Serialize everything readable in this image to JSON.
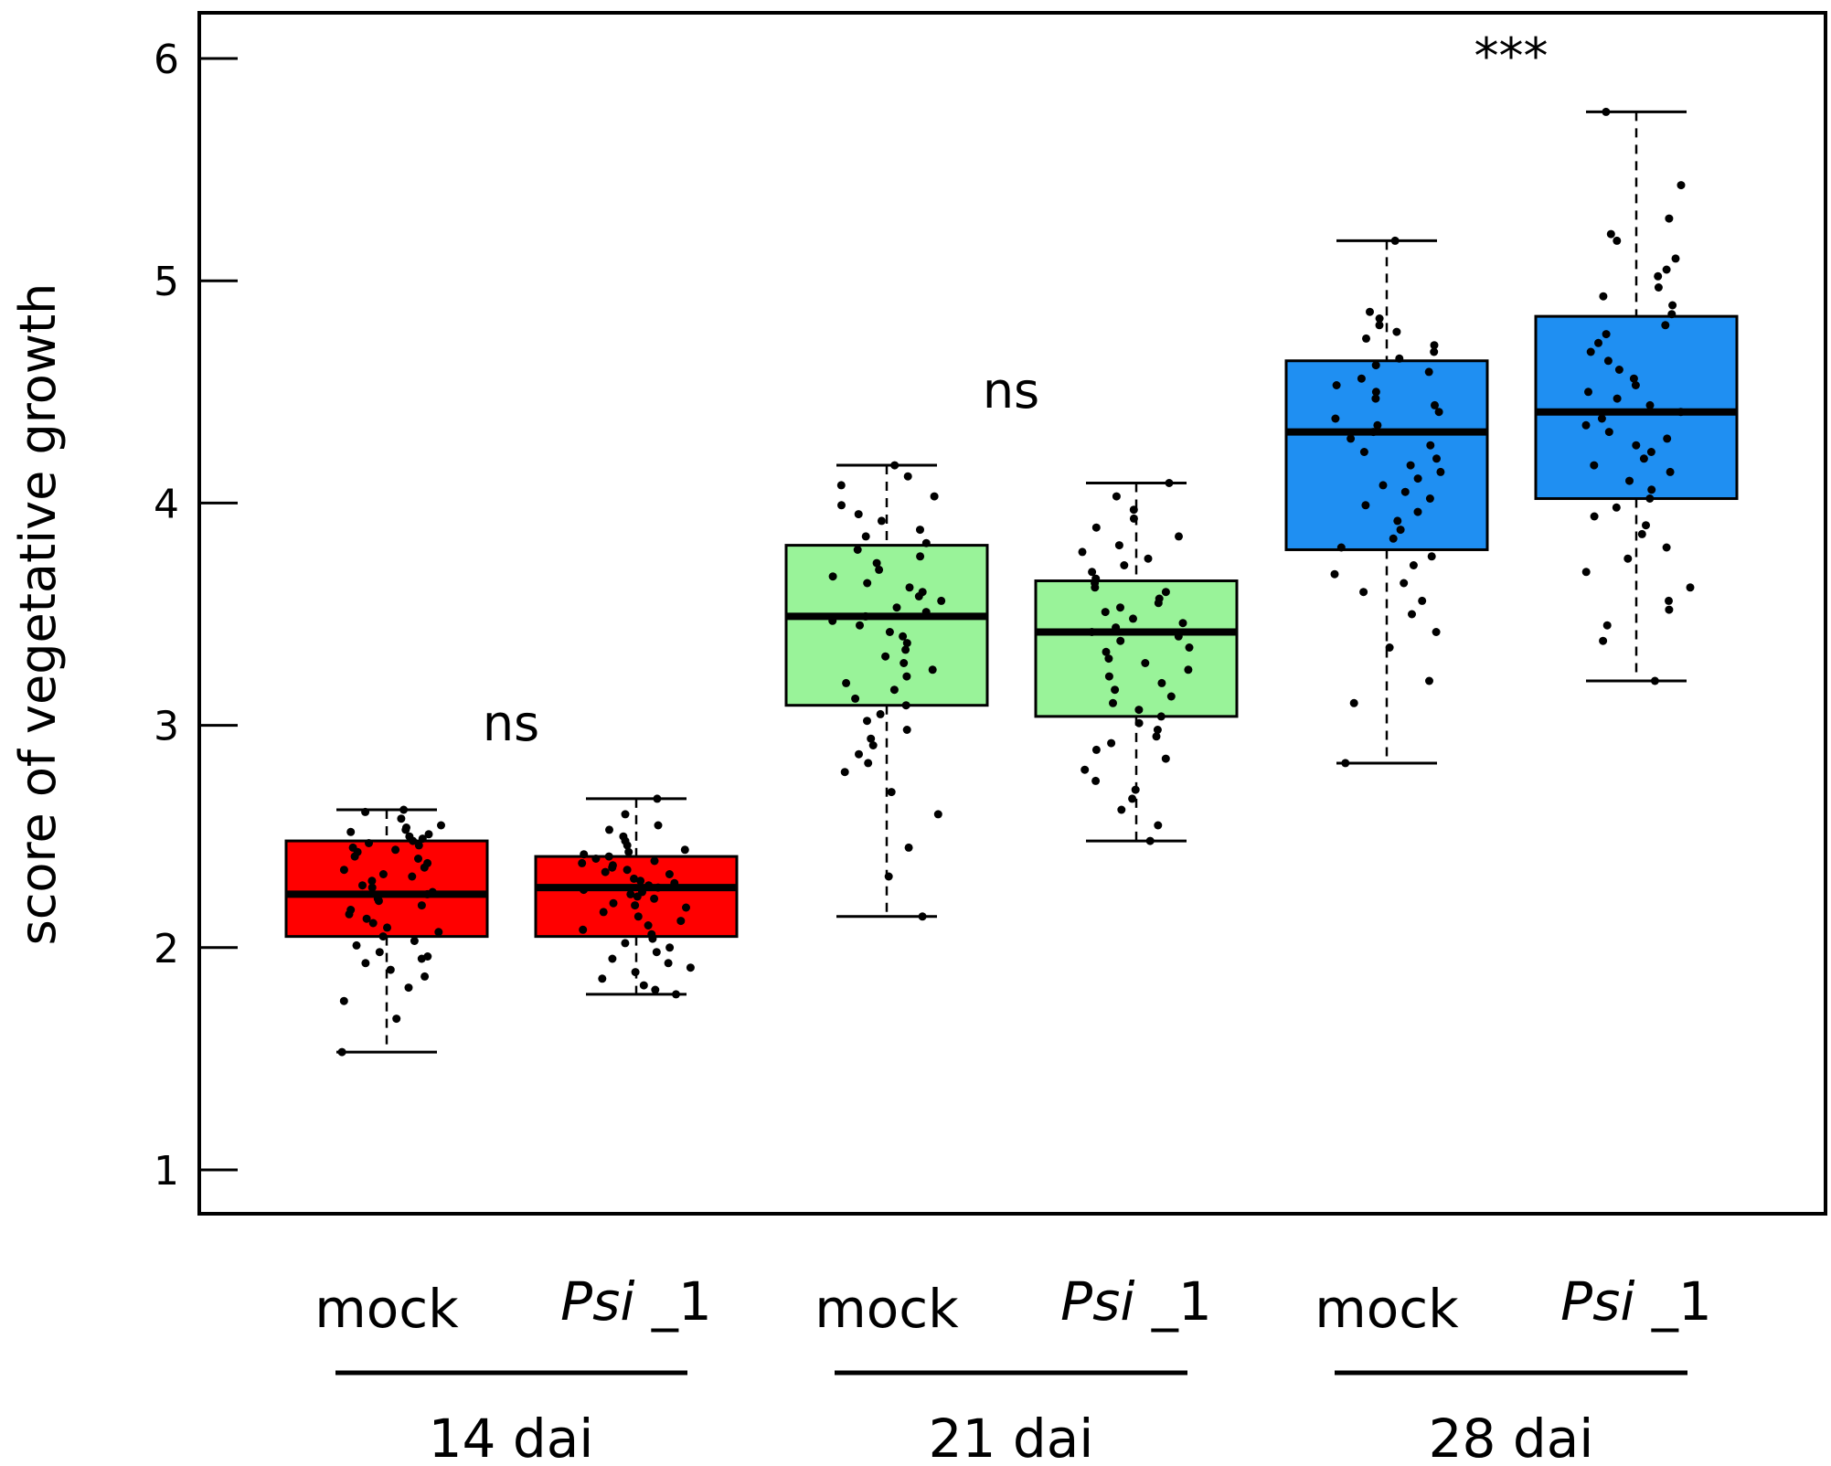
{
  "chart_data": {
    "type": "boxplot",
    "ylabel": "score of vegetative growth",
    "ylim": [
      0.8,
      6.2
    ],
    "yticks": [
      1,
      2,
      3,
      4,
      5,
      6
    ],
    "grid": false,
    "groups": [
      {
        "label": "14 dai",
        "color": "#ff0000",
        "annotation": "ns",
        "boxes": [
          {
            "label": "mock",
            "italic": "",
            "suffix": "mock",
            "min": 1.53,
            "q1": 2.05,
            "median": 2.24,
            "q3": 2.48,
            "max": 2.62,
            "points": [
              2.62,
              2.61,
              2.58,
              2.55,
              2.54,
              2.53,
              2.52,
              2.51,
              2.5,
              2.49,
              2.48,
              2.47,
              2.46,
              2.45,
              2.44,
              2.43,
              2.41,
              2.4,
              2.38,
              2.36,
              2.35,
              2.33,
              2.32,
              2.3,
              2.28,
              2.27,
              2.25,
              2.24,
              2.22,
              2.21,
              2.19,
              2.17,
              2.15,
              2.13,
              2.11,
              2.09,
              2.07,
              2.05,
              2.03,
              2.01,
              1.98,
              1.96,
              1.95,
              1.93,
              1.9,
              1.87,
              1.82,
              1.76,
              1.68,
              1.53
            ]
          },
          {
            "label": "Psi _1",
            "italic": "Psi",
            "suffix": " _1",
            "min": 1.79,
            "q1": 2.05,
            "median": 2.27,
            "q3": 2.41,
            "max": 2.67,
            "points": [
              2.67,
              2.6,
              2.55,
              2.53,
              2.5,
              2.48,
              2.46,
              2.44,
              2.43,
              2.42,
              2.41,
              2.4,
              2.39,
              2.38,
              2.37,
              2.36,
              2.35,
              2.34,
              2.33,
              2.31,
              2.3,
              2.29,
              2.28,
              2.27,
              2.26,
              2.25,
              2.24,
              2.23,
              2.22,
              2.2,
              2.19,
              2.18,
              2.16,
              2.14,
              2.12,
              2.1,
              2.08,
              2.06,
              2.04,
              2.02,
              2.0,
              1.98,
              1.95,
              1.93,
              1.91,
              1.89,
              1.86,
              1.83,
              1.81,
              1.79
            ]
          }
        ]
      },
      {
        "label": "21 dai",
        "color": "#99f399",
        "annotation": "ns",
        "boxes": [
          {
            "label": "mock",
            "italic": "",
            "suffix": "mock",
            "min": 2.14,
            "q1": 3.09,
            "median": 3.49,
            "q3": 3.81,
            "max": 4.17,
            "points": [
              4.17,
              4.12,
              4.08,
              4.03,
              3.99,
              3.95,
              3.92,
              3.88,
              3.85,
              3.82,
              3.79,
              3.76,
              3.73,
              3.7,
              3.67,
              3.64,
              3.62,
              3.6,
              3.58,
              3.56,
              3.53,
              3.51,
              3.49,
              3.47,
              3.45,
              3.42,
              3.4,
              3.37,
              3.34,
              3.31,
              3.28,
              3.25,
              3.22,
              3.19,
              3.16,
              3.12,
              3.09,
              3.05,
              3.02,
              2.98,
              2.94,
              2.91,
              2.87,
              2.83,
              2.79,
              2.7,
              2.6,
              2.45,
              2.32,
              2.14
            ]
          },
          {
            "label": "Psi _1",
            "italic": "Psi",
            "suffix": " _1",
            "min": 2.48,
            "q1": 3.04,
            "median": 3.42,
            "q3": 3.65,
            "max": 4.09,
            "points": [
              4.09,
              4.03,
              3.97,
              3.93,
              3.89,
              3.85,
              3.81,
              3.78,
              3.75,
              3.72,
              3.69,
              3.66,
              3.64,
              3.62,
              3.6,
              3.57,
              3.55,
              3.53,
              3.51,
              3.48,
              3.46,
              3.44,
              3.42,
              3.4,
              3.38,
              3.35,
              3.33,
              3.3,
              3.28,
              3.25,
              3.22,
              3.19,
              3.16,
              3.13,
              3.1,
              3.07,
              3.04,
              3.01,
              2.98,
              2.95,
              2.92,
              2.89,
              2.85,
              2.8,
              2.75,
              2.71,
              2.67,
              2.62,
              2.55,
              2.48
            ]
          }
        ]
      },
      {
        "label": "28 dai",
        "color": "#1f8ff2",
        "annotation": "***",
        "boxes": [
          {
            "label": "mock",
            "italic": "",
            "suffix": "mock",
            "min": 2.83,
            "q1": 3.79,
            "median": 4.32,
            "q3": 4.64,
            "max": 5.18,
            "points": [
              5.18,
              4.86,
              4.83,
              4.8,
              4.77,
              4.74,
              4.71,
              4.68,
              4.65,
              4.62,
              4.59,
              4.56,
              4.53,
              4.5,
              4.47,
              4.44,
              4.41,
              4.38,
              4.35,
              4.32,
              4.29,
              4.26,
              4.23,
              4.2,
              4.17,
              4.14,
              4.11,
              4.08,
              4.05,
              4.02,
              3.99,
              3.96,
              3.92,
              3.88,
              3.84,
              3.8,
              3.76,
              3.72,
              3.68,
              3.64,
              3.6,
              3.56,
              3.5,
              3.42,
              3.35,
              3.2,
              3.1,
              2.83
            ]
          },
          {
            "label": "Psi _1",
            "italic": "Psi",
            "suffix": " _1",
            "min": 3.2,
            "q1": 4.02,
            "median": 4.41,
            "q3": 4.84,
            "max": 5.76,
            "points": [
              5.76,
              5.43,
              5.28,
              5.21,
              5.18,
              5.1,
              5.05,
              5.02,
              4.97,
              4.93,
              4.89,
              4.85,
              4.8,
              4.76,
              4.72,
              4.68,
              4.64,
              4.6,
              4.56,
              4.53,
              4.5,
              4.47,
              4.44,
              4.41,
              4.38,
              4.35,
              4.32,
              4.29,
              4.26,
              4.23,
              4.2,
              4.17,
              4.14,
              4.1,
              4.06,
              4.02,
              3.98,
              3.94,
              3.9,
              3.86,
              3.8,
              3.75,
              3.69,
              3.62,
              3.56,
              3.52,
              3.45,
              3.38,
              3.2
            ]
          }
        ]
      }
    ]
  }
}
